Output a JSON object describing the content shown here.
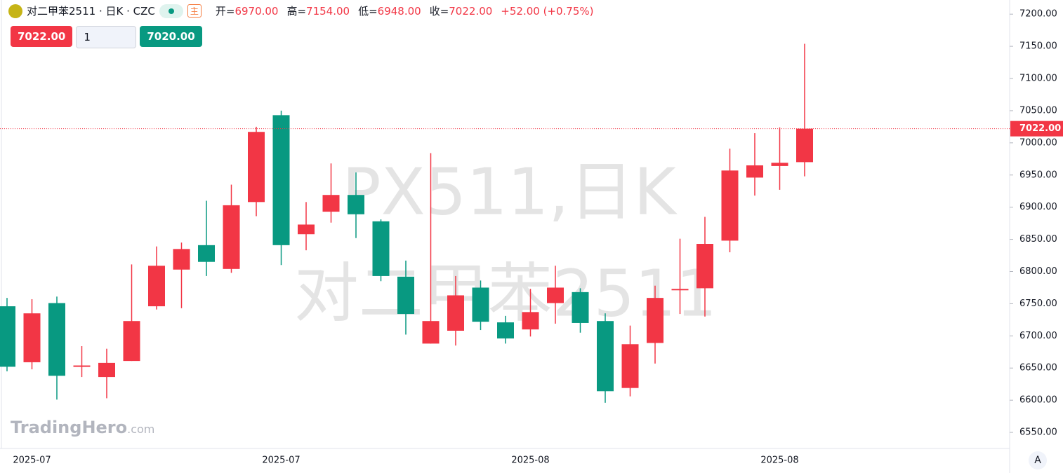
{
  "header": {
    "symbol": "对二甲苯2511 · 日K · CZC",
    "badge": "主",
    "ohlc": [
      {
        "label": "开=",
        "value": "6970.00"
      },
      {
        "label": "高=",
        "value": "7154.00"
      },
      {
        "label": "低=",
        "value": "6948.00"
      },
      {
        "label": "收=",
        "value": "7022.00"
      }
    ],
    "change": "+52.00 (+0.75%)"
  },
  "order_panel": {
    "sell": "7022.00",
    "quantity": "1",
    "buy": "7020.00"
  },
  "watermark": {
    "line1": "PX511,日K",
    "line2": "对二甲苯2511"
  },
  "logo": {
    "brand": "TradingHero",
    "suffix": ".com"
  },
  "scale_button": "A",
  "chart_data": {
    "type": "candlestick",
    "categories": [
      null,
      "2025-07",
      null,
      null,
      null,
      null,
      null,
      null,
      null,
      null,
      null,
      "2025-07",
      null,
      null,
      null,
      null,
      null,
      null,
      null,
      null,
      null,
      "2025-08",
      null,
      null,
      null,
      null,
      null,
      null,
      null,
      null,
      null,
      "2025-08",
      null
    ],
    "up_color": "#f23645",
    "down_color": "#089981",
    "series": [
      {
        "open": [
          6746,
          6659,
          6751,
          6652,
          6636,
          6661,
          6746,
          6803,
          6841,
          6804,
          6908,
          7043,
          6858,
          6893,
          6919,
          6878,
          6792,
          6688,
          6708,
          6775,
          6721,
          6710,
          6751,
          6768,
          6723,
          6619,
          6689,
          6771,
          6774,
          6848,
          6946,
          6964,
          6970
        ],
        "high": [
          6759,
          6757,
          6761,
          6684,
          6680,
          6811,
          6839,
          6845,
          6910,
          6935,
          7025,
          7050,
          6908,
          6968,
          6954,
          6881,
          6817,
          6984,
          6793,
          6786,
          6731,
          6773,
          6809,
          6774,
          6735,
          6716,
          6778,
          6851,
          6885,
          6991,
          7015,
          7024,
          7154
        ],
        "low": [
          6645,
          6648,
          6601,
          6636,
          6603,
          6661,
          6741,
          6743,
          6793,
          6798,
          6886,
          6810,
          6833,
          6876,
          6852,
          6785,
          6702,
          6688,
          6685,
          6709,
          6688,
          6699,
          6719,
          6705,
          6596,
          6606,
          6657,
          6734,
          6730,
          6830,
          6918,
          6927,
          6948
        ],
        "close": [
          6652,
          6735,
          6638,
          6654,
          6658,
          6723,
          6809,
          6835,
          6815,
          6903,
          7017,
          6841,
          6873,
          6919,
          6889,
          6793,
          6734,
          6723,
          6763,
          6722,
          6696,
          6737,
          6775,
          6720,
          6614,
          6687,
          6759,
          6773,
          6843,
          6957,
          6965,
          6969,
          7022
        ]
      }
    ],
    "ylim": [
      6525,
      7222
    ],
    "yticks": [
      {
        "value": 6550,
        "label": "6550.00"
      },
      {
        "value": 6600,
        "label": "6600.00"
      },
      {
        "value": 6650,
        "label": "6650.00"
      },
      {
        "value": 6700,
        "label": "6700.00"
      },
      {
        "value": 6750,
        "label": "6750.00"
      },
      {
        "value": 6800,
        "label": "6800.00"
      },
      {
        "value": 6850,
        "label": "6850.00"
      },
      {
        "value": 6900,
        "label": "6900.00"
      },
      {
        "value": 6950,
        "label": "6950.00"
      },
      {
        "value": 7000,
        "label": "7000.00"
      },
      {
        "value": 7050,
        "label": "7050.00"
      },
      {
        "value": 7100,
        "label": "7100.00"
      },
      {
        "value": 7150,
        "label": "7150.00"
      },
      {
        "value": 7200,
        "label": "7200.00"
      }
    ],
    "last_price": {
      "value": 7022,
      "label": "7022.00"
    }
  }
}
